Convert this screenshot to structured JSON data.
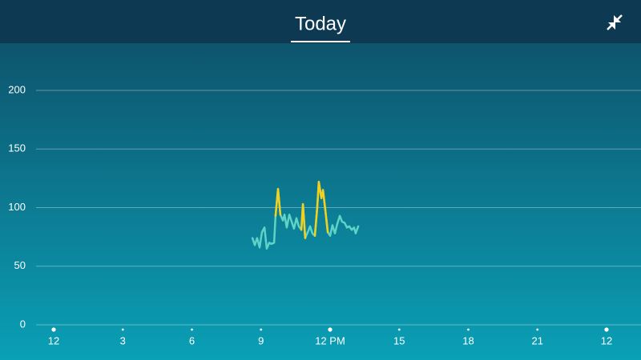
{
  "chart_data": {
    "type": "line",
    "title": "Today",
    "x": [
      8.63,
      8.73,
      8.83,
      8.94,
      9.04,
      9.15,
      9.25,
      9.36,
      9.46,
      9.57,
      9.63,
      9.74,
      9.84,
      9.95,
      10.02,
      10.12,
      10.23,
      10.33,
      10.43,
      10.54,
      10.64,
      10.75,
      10.82,
      10.92,
      11.03,
      11.13,
      11.23,
      11.34,
      11.44,
      11.51,
      11.62,
      11.69,
      11.79,
      11.9,
      12.0,
      12.1,
      12.21,
      12.31,
      12.42,
      12.52,
      12.63,
      12.73,
      12.83,
      12.94,
      13.04,
      13.11,
      13.22
    ],
    "series": [
      {
        "color": "#5fd3c6",
        "values": [
          74,
          68,
          74,
          66,
          79,
          83,
          65,
          70,
          69,
          70,
          93,
          116,
          94,
          89,
          94,
          83,
          94,
          88,
          82,
          91,
          84,
          81,
          103,
          74,
          79,
          84,
          78,
          76,
          100,
          122,
          108,
          115,
          98,
          79,
          76,
          85,
          78,
          86,
          93,
          88,
          87,
          83,
          84,
          81,
          83,
          78,
          84
        ]
      },
      {
        "color": "#f2d11c",
        "values": [
          null,
          null,
          null,
          null,
          null,
          null,
          null,
          null,
          null,
          null,
          93,
          116,
          94,
          null,
          null,
          null,
          null,
          null,
          null,
          null,
          null,
          81,
          103,
          74,
          null,
          null,
          null,
          76,
          100,
          122,
          108,
          115,
          98,
          79,
          null,
          null,
          null,
          null,
          null,
          null,
          null,
          null,
          null,
          null,
          null,
          null,
          null
        ]
      }
    ],
    "xlim": [
      0,
      24
    ],
    "xticks": [
      {
        "value": 0,
        "label": "12"
      },
      3,
      6,
      9,
      {
        "value": 12,
        "label": "12 PM"
      },
      15,
      18,
      21,
      {
        "value": 24,
        "label": "12"
      }
    ],
    "ylim": [
      0,
      200
    ],
    "yticks": [
      0,
      50,
      100,
      150,
      200
    ],
    "grid": true
  }
}
